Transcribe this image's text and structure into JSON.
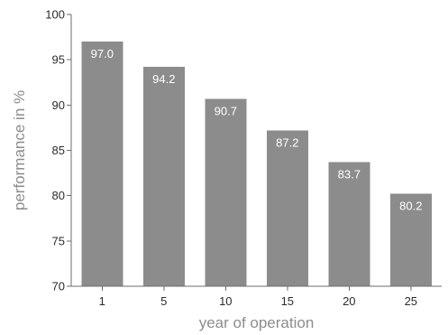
{
  "chart_data": {
    "type": "bar",
    "categories": [
      "1",
      "5",
      "10",
      "15",
      "20",
      "25"
    ],
    "values": [
      97.0,
      94.2,
      90.7,
      87.2,
      83.7,
      80.2
    ],
    "data_labels": [
      "97.0",
      "94.2",
      "90.7",
      "87.2",
      "83.7",
      "80.2"
    ],
    "title": "",
    "xlabel": "year of operation",
    "ylabel": "performance in %",
    "ylim": [
      70,
      100
    ],
    "yticks": [
      "70",
      "75",
      "80",
      "85",
      "90",
      "95",
      "100"
    ],
    "grid": false,
    "legend": "none",
    "bar_color": "#8c8c8c",
    "label_color": "#ffffff"
  }
}
